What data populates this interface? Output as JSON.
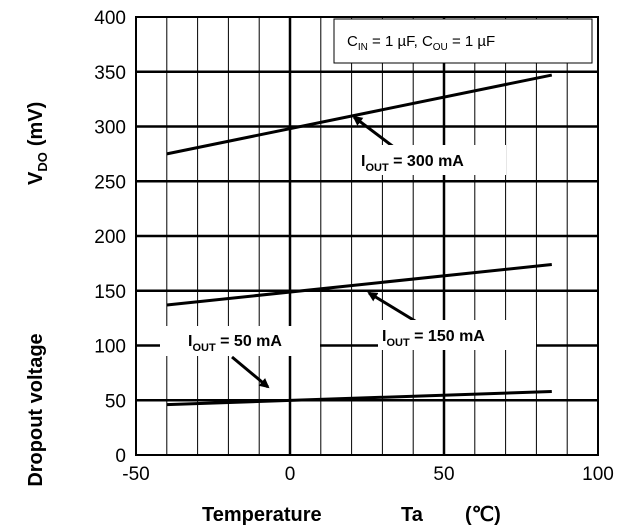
{
  "chart_data": {
    "type": "line",
    "xlabel": {
      "main": "Temperature",
      "symbol": "Ta",
      "unit": "(℃)"
    },
    "ylabel": {
      "main": "Dropout voltage",
      "symbol": "V",
      "sub": "DO",
      "unit": "(mV)"
    },
    "xlim": [
      -50,
      100
    ],
    "ylim": [
      0,
      400
    ],
    "x_ticks": [
      -50,
      0,
      50,
      100
    ],
    "y_ticks": [
      0,
      50,
      100,
      150,
      200,
      250,
      300,
      350,
      400
    ],
    "x_minor_step": 10,
    "grid": true,
    "legend": "none",
    "condition": {
      "c": "C",
      "in": "IN",
      "eq1": " = 1 µF, ",
      "ou": "OU",
      "eq2": " = 1 µF"
    },
    "series": [
      {
        "name": "300 mA",
        "x": [
          -40,
          85
        ],
        "y": [
          275,
          347
        ]
      },
      {
        "name": "150 mA",
        "x": [
          -40,
          85
        ],
        "y": [
          137,
          174
        ]
      },
      {
        "name": "50 mA",
        "x": [
          -40,
          85
        ],
        "y": [
          46,
          58
        ]
      }
    ],
    "annotations": [
      {
        "pre": "I",
        "sub": "OUT",
        "post": " = 300 mA"
      },
      {
        "pre": "I",
        "sub": "OUT",
        "post": " = 150 mA"
      },
      {
        "pre": "I",
        "sub": "OUT",
        "post": " = 50 mA"
      }
    ]
  }
}
